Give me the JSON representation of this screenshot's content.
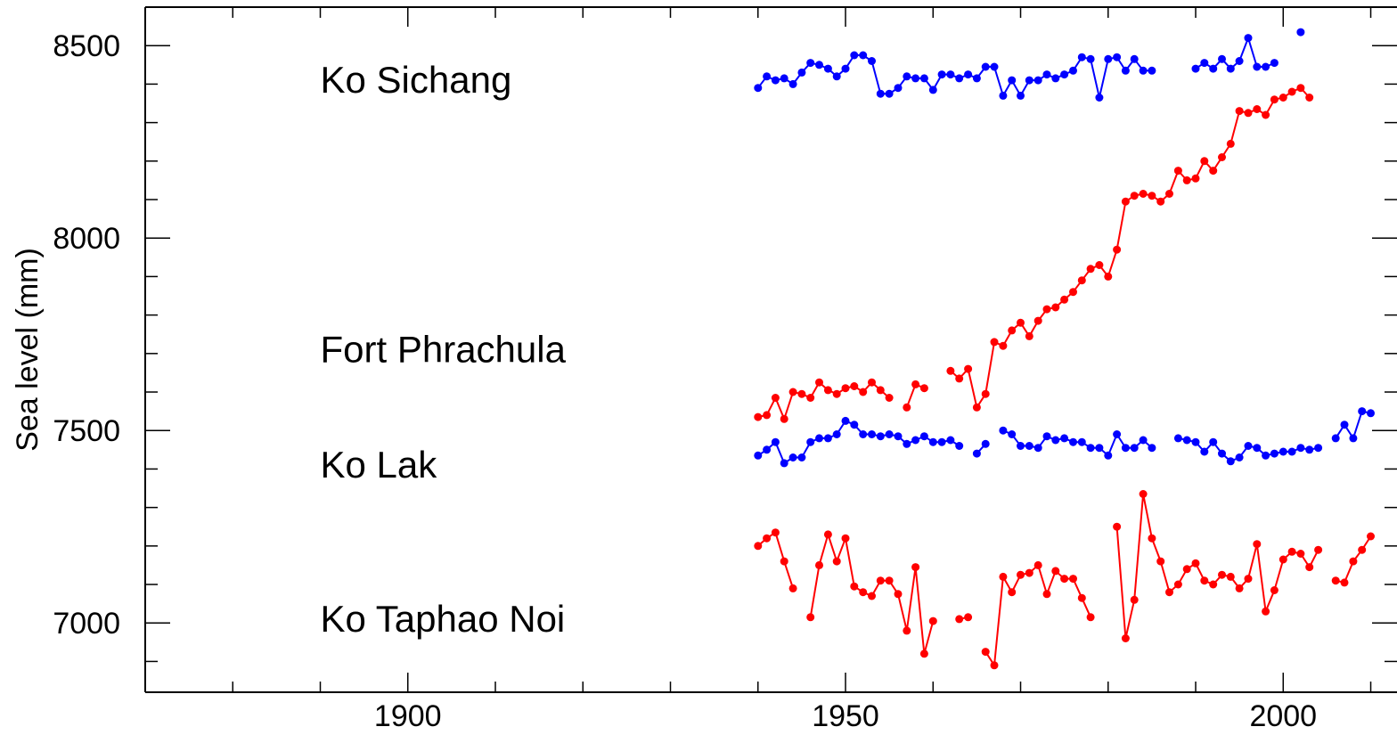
{
  "chart_data": {
    "type": "line",
    "title": "",
    "xlabel": "",
    "ylabel": "Sea level (mm)",
    "xlim": [
      1870,
      2013
    ],
    "ylim": [
      6820,
      8600
    ],
    "xticks": [
      1900,
      1950,
      2000
    ],
    "yticks": [
      7000,
      7500,
      8000,
      8500
    ],
    "grid": false,
    "legend": "none",
    "station_labels": [
      {
        "text": "Ko Sichang",
        "at": [
          1890,
          8410
        ]
      },
      {
        "text": "Fort Phrachula",
        "at": [
          1890,
          7710
        ]
      },
      {
        "text": "Ko Lak",
        "at": [
          1890,
          7410
        ]
      },
      {
        "text": "Ko Taphao Noi",
        "at": [
          1890,
          7010
        ]
      }
    ],
    "series": [
      {
        "color": "#0000ff",
        "segments": [
          {
            "start": 1940,
            "values": [
              8390,
              8420,
              8410,
              8415,
              8400,
              8430,
              8455,
              8450,
              8440,
              8420,
              8440,
              8475,
              8475,
              8460,
              8375,
              8375,
              8390,
              8420,
              8415,
              8415,
              8385,
              8425,
              8425,
              8415,
              8425,
              8415,
              8445,
              8445,
              8370,
              8410,
              8370,
              8410,
              8410,
              8425,
              8415,
              8425,
              8435,
              8470,
              8465,
              8365,
              8465,
              8470,
              8435,
              8465,
              8435,
              8435
            ]
          },
          {
            "start": 1990,
            "values": [
              8440,
              8455,
              8440,
              8465,
              8440,
              8460,
              8520,
              8445,
              8445,
              8455
            ]
          },
          {
            "start": 2002,
            "values": [
              8535
            ]
          }
        ]
      },
      {
        "color": "#ff0000",
        "segments": [
          {
            "start": 1940,
            "values": [
              7535,
              7540,
              7585,
              7530,
              7600,
              7595,
              7585,
              7625,
              7605,
              7595,
              7610,
              7615,
              7600,
              7625,
              7605,
              7585
            ]
          },
          {
            "start": 1957,
            "values": [
              7560,
              7620,
              7610
            ]
          },
          {
            "start": 1962,
            "values": [
              7655,
              7635,
              7660,
              7560,
              7595,
              7730,
              7720,
              7760,
              7780,
              7745,
              7785,
              7815,
              7820,
              7840,
              7860,
              7890,
              7920,
              7930,
              7900,
              7970,
              8095,
              8110,
              8115,
              8110,
              8095,
              8115,
              8175,
              8150,
              8155,
              8200,
              8175,
              8210,
              8245,
              8330,
              8325,
              8335,
              8320,
              8360,
              8365,
              8380,
              8390,
              8365
            ]
          }
        ]
      },
      {
        "color": "#0000ff",
        "segments": [
          {
            "start": 1940,
            "values": [
              7435,
              7450,
              7470,
              7415,
              7430,
              7430,
              7470,
              7480,
              7480,
              7490,
              7525,
              7515,
              7490,
              7490,
              7485,
              7490,
              7485,
              7465,
              7475,
              7485,
              7470,
              7470,
              7475,
              7460
            ]
          },
          {
            "start": 1965,
            "values": [
              7440,
              7465
            ]
          },
          {
            "start": 1968,
            "values": [
              7500,
              7490,
              7460,
              7460,
              7455,
              7485,
              7475,
              7480,
              7470,
              7470,
              7455,
              7455,
              7435,
              7490,
              7455,
              7455,
              7475,
              7455
            ]
          },
          {
            "start": 1988,
            "values": [
              7480,
              7475,
              7470,
              7445,
              7470,
              7440,
              7420,
              7430,
              7460,
              7455,
              7435,
              7440,
              7445,
              7445,
              7455,
              7450,
              7455
            ]
          },
          {
            "start": 2006,
            "values": [
              7480,
              7515,
              7480,
              7550,
              7545
            ]
          }
        ]
      },
      {
        "color": "#ff0000",
        "segments": [
          {
            "start": 1940,
            "values": [
              7200,
              7220,
              7235,
              7160,
              7090
            ]
          },
          {
            "start": 1946,
            "values": [
              7015,
              7150,
              7230,
              7160,
              7220,
              7095,
              7080,
              7070,
              7110,
              7110,
              7075,
              6980,
              7145,
              6920,
              7005
            ]
          },
          {
            "start": 1963,
            "values": [
              7010,
              7015
            ]
          },
          {
            "start": 1966,
            "values": [
              6925,
              6890,
              7120,
              7080,
              7125,
              7130,
              7150,
              7075,
              7135,
              7115,
              7115,
              7065,
              7015
            ]
          },
          {
            "start": 1981,
            "values": [
              7250,
              6960,
              7060,
              7335,
              7220,
              7160,
              7080,
              7100,
              7140,
              7155,
              7110,
              7100,
              7125,
              7120,
              7090,
              7115,
              7205,
              7030,
              7085,
              7165,
              7185,
              7180,
              7145,
              7190
            ]
          },
          {
            "start": 2006,
            "values": [
              7110,
              7105,
              7160,
              7190,
              7225
            ]
          }
        ]
      }
    ]
  }
}
